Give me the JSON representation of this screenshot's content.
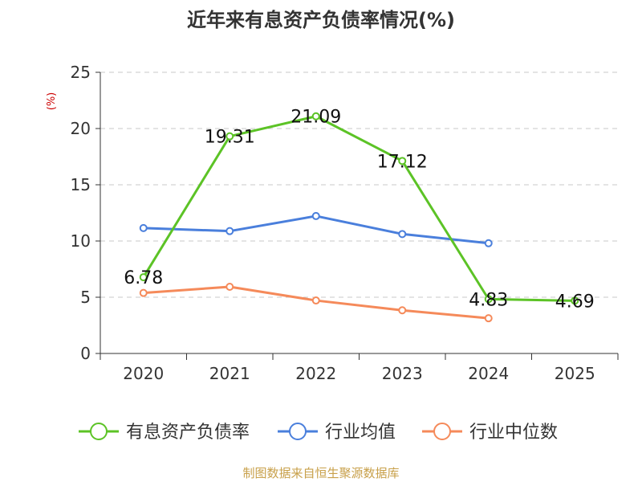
{
  "chart_data": {
    "type": "line",
    "title": "近年来有息资产负债率情况(%)",
    "ylabel": "(%)",
    "xlabel": "",
    "categories": [
      "2020",
      "2021",
      "2022",
      "2023",
      "2024",
      "2025"
    ],
    "ylim": [
      0,
      25
    ],
    "yticks": [
      0,
      5,
      10,
      15,
      20,
      25
    ],
    "grid": true,
    "legend_position": "bottom",
    "series": [
      {
        "name": "有息资产负债率",
        "color": "#5cc326",
        "values": [
          6.78,
          19.31,
          21.09,
          17.12,
          4.83,
          4.69
        ],
        "labels": [
          "6.78",
          "19.31",
          "21.09",
          "17.12",
          "4.83",
          "4.69"
        ]
      },
      {
        "name": "行业均值",
        "color": "#4a7fdc",
        "values": [
          11.15,
          10.88,
          12.22,
          10.62,
          9.8,
          null
        ]
      },
      {
        "name": "行业中位数",
        "color": "#f58a5a",
        "values": [
          5.38,
          5.93,
          4.71,
          3.84,
          3.13,
          null
        ]
      }
    ],
    "source": "制图数据来自恒生聚源数据库"
  },
  "colors": {
    "axis": "#333333",
    "grid": "#c8c8c8",
    "ylabel": "#cc0000",
    "source": "#c8a04a"
  }
}
